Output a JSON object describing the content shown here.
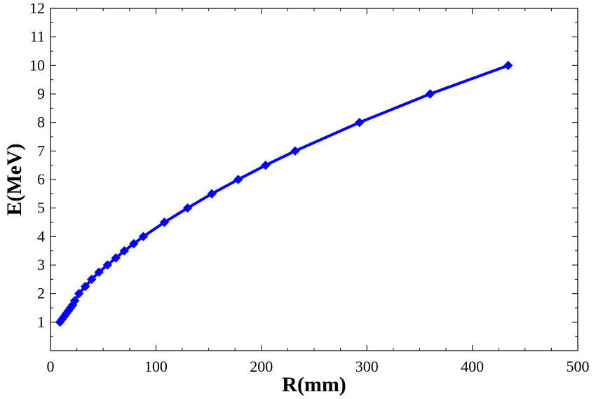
{
  "chart_data": {
    "type": "line",
    "title": "",
    "xlabel": "R(mm)",
    "ylabel": "E(MeV)",
    "xlim": [
      0,
      500
    ],
    "ylim": [
      0,
      12
    ],
    "xticks": [
      0,
      100,
      200,
      300,
      400,
      500
    ],
    "yticks": [
      1,
      2,
      3,
      4,
      5,
      6,
      7,
      8,
      9,
      10,
      11,
      12
    ],
    "grid": false,
    "line_color": "#0000ff",
    "marker": "diamond",
    "series": [
      {
        "x": [
          9,
          11,
          13,
          15,
          17,
          19,
          21,
          23,
          27,
          33,
          39,
          46,
          54,
          62,
          70,
          79,
          88,
          108,
          130,
          153,
          178,
          204,
          232,
          293,
          360,
          434
        ],
        "y": [
          1.0,
          1.1,
          1.2,
          1.3,
          1.4,
          1.5,
          1.6,
          1.75,
          2.0,
          2.25,
          2.5,
          2.75,
          3.0,
          3.25,
          3.5,
          3.75,
          4.0,
          4.5,
          5.0,
          5.5,
          6.0,
          6.5,
          7.0,
          8.0,
          9.0,
          10.0
        ]
      }
    ]
  }
}
